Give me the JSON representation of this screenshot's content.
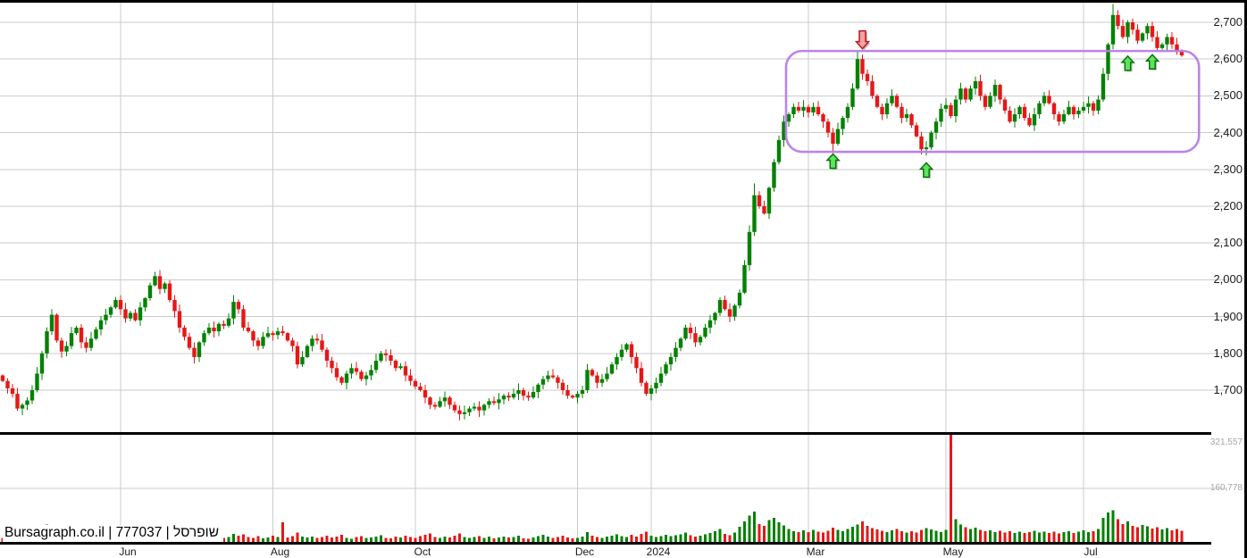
{
  "branding": {
    "site": "Bursagraph.co.il",
    "security_id": "777037",
    "security_name": "שופרסל",
    "full_text": "Bursagraph.co.il | 777037 | שופרסל"
  },
  "colors": {
    "up_candle": "#038103",
    "down_candle": "#E41818",
    "grid": "#CBCBCB",
    "frame": "#000000",
    "highlight_box": "#B97CE8",
    "up_arrow_fill": "#5FE45F",
    "up_arrow_stroke": "#077507",
    "down_arrow_fill": "#F2A2A8",
    "down_arrow_stroke": "#C01818",
    "axis_text": "#1b1b1b",
    "volume_text": "#a6a6a6"
  },
  "chart_data": {
    "type": "candlestick",
    "symbol": "שופרסל",
    "symbol_id": "777037",
    "open_policy": "previous-close",
    "open_first": 1740,
    "price_axis": {
      "min": 1700,
      "max": 2700,
      "step": 100,
      "labels": [
        "1,700",
        "1,800",
        "1,900",
        "2,000",
        "2,100",
        "2,200",
        "2,300",
        "2,400",
        "2,500",
        "2,600",
        "2,700"
      ]
    },
    "volume_axis": {
      "labels": [
        "321,557",
        "160,778"
      ],
      "values": [
        321557,
        160778
      ],
      "max": 321557
    },
    "time_axis": {
      "months": [
        {
          "label": "Jun",
          "index": 24
        },
        {
          "label": "Aug",
          "index": 55
        },
        {
          "label": "Oct",
          "index": 84
        },
        {
          "label": "Dec",
          "index": 117
        },
        {
          "label": "2024",
          "index": 132
        },
        {
          "label": "Mar",
          "index": 164
        },
        {
          "label": "May",
          "index": 192
        },
        {
          "label": "Jul",
          "index": 220
        }
      ]
    },
    "closes": [
      1725,
      1705,
      1690,
      1650,
      1660,
      1672,
      1700,
      1745,
      1800,
      1860,
      1905,
      1835,
      1805,
      1820,
      1855,
      1870,
      1830,
      1815,
      1840,
      1865,
      1890,
      1905,
      1925,
      1945,
      1920,
      1895,
      1910,
      1890,
      1925,
      1950,
      1985,
      2010,
      1975,
      1990,
      1945,
      1915,
      1870,
      1845,
      1815,
      1790,
      1830,
      1855,
      1870,
      1860,
      1880,
      1875,
      1895,
      1940,
      1920,
      1870,
      1860,
      1835,
      1820,
      1845,
      1855,
      1850,
      1860,
      1855,
      1835,
      1820,
      1770,
      1790,
      1820,
      1840,
      1835,
      1810,
      1780,
      1760,
      1735,
      1720,
      1745,
      1760,
      1750,
      1730,
      1740,
      1755,
      1780,
      1800,
      1795,
      1780,
      1760,
      1765,
      1740,
      1725,
      1710,
      1700,
      1680,
      1660,
      1655,
      1670,
      1680,
      1660,
      1645,
      1635,
      1640,
      1650,
      1655,
      1645,
      1660,
      1670,
      1665,
      1675,
      1685,
      1680,
      1690,
      1700,
      1685,
      1680,
      1695,
      1715,
      1730,
      1740,
      1735,
      1720,
      1700,
      1685,
      1680,
      1690,
      1700,
      1755,
      1740,
      1720,
      1730,
      1745,
      1770,
      1790,
      1810,
      1825,
      1790,
      1760,
      1720,
      1690,
      1705,
      1720,
      1745,
      1770,
      1790,
      1815,
      1840,
      1870,
      1855,
      1830,
      1845,
      1870,
      1890,
      1910,
      1945,
      1920,
      1900,
      1930,
      1965,
      2040,
      2130,
      2230,
      2200,
      2180,
      2250,
      2320,
      2380,
      2430,
      2450,
      2470,
      2460,
      2470,
      2455,
      2470,
      2450,
      2430,
      2400,
      2370,
      2410,
      2440,
      2470,
      2520,
      2600,
      2560,
      2540,
      2500,
      2470,
      2450,
      2480,
      2500,
      2470,
      2440,
      2450,
      2420,
      2390,
      2355,
      2360,
      2400,
      2430,
      2465,
      2475,
      2445,
      2490,
      2520,
      2490,
      2520,
      2540,
      2500,
      2470,
      2500,
      2530,
      2490,
      2460,
      2430,
      2450,
      2470,
      2440,
      2420,
      2450,
      2480,
      2500,
      2480,
      2450,
      2430,
      2450,
      2470,
      2450,
      2460,
      2470,
      2480,
      2460,
      2490,
      2560,
      2640,
      2720,
      2690,
      2660,
      2700,
      2680,
      2650,
      2670,
      2690,
      2660,
      2630,
      2640,
      2660,
      2640,
      2620,
      2610
    ],
    "volumes": [
      12400,
      9800,
      15600,
      22100,
      11200,
      8700,
      19400,
      38200,
      45600,
      52300,
      41800,
      24600,
      18900,
      14200,
      16800,
      21500,
      12700,
      9900,
      15300,
      18600,
      24800,
      19200,
      28400,
      33100,
      21600,
      14800,
      17900,
      13500,
      20700,
      26300,
      35200,
      29800,
      22400,
      16700,
      19800,
      24100,
      18300,
      15600,
      21900,
      27400,
      17800,
      14500,
      12900,
      16200,
      19700,
      11800,
      15400,
      23600,
      18100,
      22800,
      14700,
      12300,
      16900,
      10800,
      13600,
      18200,
      15100,
      58400,
      13900,
      17600,
      28700,
      16400,
      12800,
      15700,
      11900,
      14600,
      18800,
      13200,
      16500,
      21700,
      12600,
      9800,
      14300,
      17100,
      11500,
      13800,
      16200,
      19500,
      12100,
      10400,
      15800,
      13400,
      18700,
      14900,
      11600,
      16800,
      21300,
      25600,
      14200,
      12500,
      16100,
      13700,
      19200,
      24800,
      15300,
      11900,
      14600,
      17800,
      12400,
      15900,
      10700,
      13500,
      16300,
      12800,
      14100,
      18600,
      11200,
      9600,
      13900,
      17400,
      21800,
      15600,
      12300,
      14800,
      18100,
      13600,
      10900,
      12700,
      16400,
      29800,
      18700,
      14200,
      11800,
      15600,
      19300,
      22700,
      17500,
      14900,
      20800,
      16300,
      24600,
      31200,
      18400,
      14700,
      17200,
      21500,
      16800,
      19600,
      23400,
      28100,
      19700,
      15800,
      18300,
      22600,
      26400,
      31800,
      38200,
      24700,
      19900,
      27600,
      45800,
      62300,
      78600,
      91400,
      54200,
      47800,
      66300,
      72100,
      58900,
      49600,
      38400,
      32700,
      28900,
      34600,
      29800,
      35700,
      31200,
      27600,
      33900,
      42800,
      36500,
      31800,
      38700,
      45200,
      52600,
      61300,
      48700,
      42100,
      37800,
      33400,
      29700,
      34200,
      38900,
      31600,
      27800,
      32400,
      28700,
      35600,
      41200,
      37900,
      33600,
      29400,
      35800,
      321557,
      68400,
      52700,
      44300,
      38600,
      42900,
      36700,
      31800,
      35400,
      29600,
      33700,
      28400,
      31900,
      27300,
      30800,
      26500,
      29200,
      33600,
      28100,
      31400,
      26800,
      30200,
      25700,
      28900,
      32600,
      27400,
      30700,
      34800,
      29300,
      32700,
      38400,
      72600,
      88300,
      94700,
      67800,
      54200,
      61900,
      48700,
      43600,
      51200,
      46800,
      39700,
      44300,
      37900,
      41600,
      35200,
      38800,
      33400
    ],
    "wick_overrides": {
      "93": {
        "low": 1618
      },
      "153": {
        "high": 2262
      },
      "169": {
        "low": 2345
      },
      "174": {
        "high": 2622
      },
      "175": {
        "high": 2612
      },
      "188": {
        "low": 2338
      },
      "226": {
        "high": 2750
      }
    },
    "annotations": {
      "highlight_box": {
        "start_index": 160,
        "end_index": 243.5,
        "price_top": 2622,
        "price_bottom": 2348
      },
      "arrows": [
        {
          "dir": "down",
          "index": 175,
          "tip_price": 2628
        },
        {
          "dir": "up",
          "index": 169,
          "tip_price": 2342
        },
        {
          "dir": "up",
          "index": 188,
          "tip_price": 2318
        },
        {
          "dir": "up",
          "index": 229,
          "tip_price": 2608
        },
        {
          "dir": "up",
          "index": 234,
          "tip_price": 2612
        }
      ]
    }
  }
}
